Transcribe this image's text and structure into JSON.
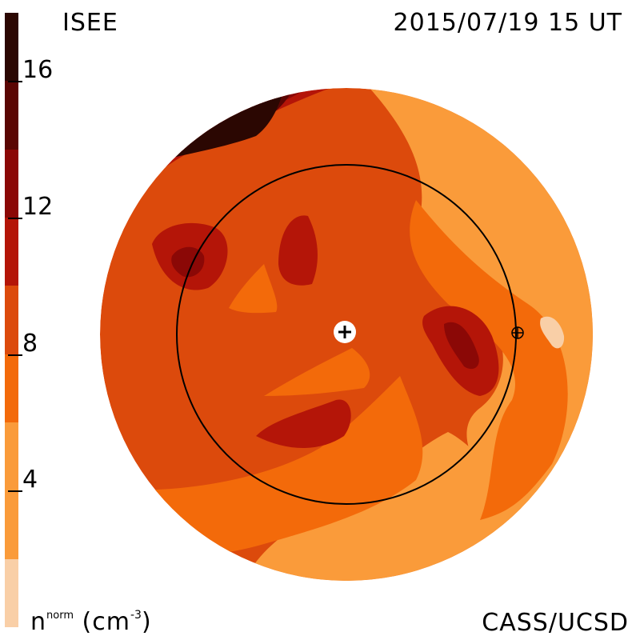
{
  "header": {
    "instrument": "ISEE",
    "timestamp": "2015/07/19  15 UT"
  },
  "footer": {
    "credit": "CASS/UCSD",
    "units_base": "n",
    "units_sup": "norm",
    "units_paren": "(cm",
    "units_exp": "-3",
    "units_close": ")"
  },
  "chart_data": {
    "type": "heatmap",
    "title": "",
    "colorbar": {
      "ticks": [
        "16",
        "12",
        "8",
        "4"
      ],
      "tick_values": [
        16,
        12,
        8,
        4
      ],
      "range": [
        0,
        18
      ],
      "levels": [
        {
          "min": 0,
          "max": 2,
          "color": "#f9cfa7"
        },
        {
          "min": 2,
          "max": 6,
          "color": "#fa9b3a"
        },
        {
          "min": 6,
          "max": 8,
          "color": "#f36a0a"
        },
        {
          "min": 8,
          "max": 10,
          "color": "#dc4a0c"
        },
        {
          "min": 10,
          "max": 12,
          "color": "#b41508"
        },
        {
          "min": 12,
          "max": 14,
          "color": "#8b0806"
        },
        {
          "min": 14,
          "max": 16,
          "color": "#5a0603"
        },
        {
          "min": 16,
          "max": 18,
          "color": "#2b0702"
        }
      ]
    },
    "map": {
      "view": "ecliptic-pole",
      "earth_orbit_circle": true,
      "sun_marker": "plus",
      "earth_marker": "crossed-circle"
    }
  }
}
